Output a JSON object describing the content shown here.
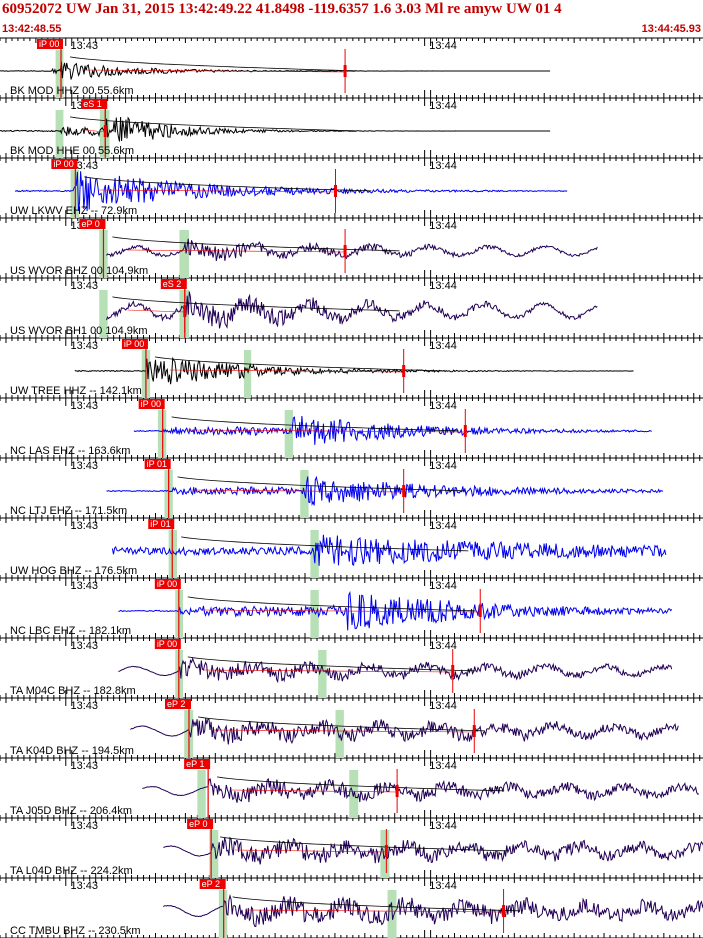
{
  "header": {
    "title": "60952072 UW Jan 31, 2015 13:42:49.22   41.8498 -119.6357  1.6 3.03 Ml re amyw UW 01   4",
    "start_time": "13:42:48.55",
    "end_time": "13:44:45.93"
  },
  "colors": {
    "header_text": "#c00000",
    "pick_flag": "#ee0000",
    "pick_line": "#ee0000",
    "window": "#b7e0b7",
    "moveout": "#000000",
    "trace_black": "#000000",
    "trace_blue": "#0000ee",
    "trace_navy": "#220055"
  },
  "chart_data": {
    "type": "line",
    "title": "60952072 UW Jan 31, 2015 13:42:49.22   41.8498 -119.6357  1.6 3.03 Ml re amyw UW 01   4",
    "x_range_seconds": [
      0,
      117.38
    ],
    "time_marks": [
      {
        "label": "13:43",
        "t": 11.45
      },
      {
        "label": "13:44",
        "t": 71.45
      }
    ],
    "traces": [
      {
        "label": "BK MOD HHZ 00 55.6km",
        "color": "black",
        "start": 0.0,
        "end": 92.0,
        "p": 10.2,
        "s": 17.6,
        "pick": {
          "label": "iP 00",
          "t": 10.2
        },
        "red_t": 57.7,
        "win": [
          9.3,
          10.6
        ],
        "amp": 0.35,
        "sig_start": 8.8,
        "onset": 10.2,
        "decay": 0.08
      },
      {
        "label": "BK MOD HHE 00 55.6km",
        "color": "black",
        "start": 0.0,
        "end": 92.0,
        "p": 10.2,
        "s": 17.6,
        "pick": {
          "label": "eS 1",
          "t": 17.6
        },
        "red_t": 17.6,
        "win": [
          9.3,
          10.6,
          16.7,
          18.3
        ],
        "amp": 0.7,
        "sig_start": 10.2,
        "onset": 17.6,
        "decay": 0.1
      },
      {
        "label": "UW LKWV EHZ -- 72.9km",
        "color": "blue",
        "start": 2.5,
        "end": 95.0,
        "p": 12.6,
        "s": 20.8,
        "pick": {
          "label": "iP 00",
          "t": 12.6
        },
        "red_t": 56.1,
        "win": [
          11.8,
          13.2
        ],
        "amp": 0.8,
        "sig_start": 12.0,
        "onset": 12.6,
        "decay": 0.05
      },
      {
        "label": "US WVOR BHZ 00 104.9km",
        "color": "navy",
        "start": 17.8,
        "end": 100.0,
        "p": 17.3,
        "s": 30.9,
        "pick": {
          "label": "eP 0",
          "t": 17.3
        },
        "red_t": 57.7,
        "win": [
          16.6,
          18.0,
          30.0,
          31.6
        ],
        "amp": 0.45,
        "sig_start": 17.3,
        "onset": 30.9,
        "decay": 0.03
      },
      {
        "label": "US WVOR BH1 00 104.9km",
        "color": "navy",
        "start": 17.8,
        "end": 100.0,
        "p": 17.3,
        "s": 30.9,
        "pick": {
          "label": "eS 2",
          "t": 30.9
        },
        "red_t": 30.9,
        "win": [
          16.6,
          18.0,
          30.0,
          31.6
        ],
        "amp": 0.7,
        "sig_start": 17.8,
        "onset": 30.9,
        "decay": 0.03
      },
      {
        "label": "UW TREE HHZ -- 142.1km",
        "color": "black",
        "start": 12.5,
        "end": 106.0,
        "p": 24.4,
        "s": 41.8,
        "pick": {
          "label": "iP 00",
          "t": 24.4
        },
        "red_t": 67.5,
        "win": [
          23.7,
          25.1,
          40.8,
          42.0
        ],
        "amp": 0.65,
        "sig_start": 24.4,
        "onset": 24.4,
        "decay": 0.06
      },
      {
        "label": "NC LAS EHZ -- 163.6km",
        "color": "blue",
        "start": 22.4,
        "end": 109.0,
        "p": 27.2,
        "s": 48.4,
        "pick": {
          "label": "iP 00",
          "t": 27.2
        },
        "red_t": 77.8,
        "win": [
          26.4,
          27.8,
          47.6,
          49.0
        ],
        "amp": 0.6,
        "sig_start": 27.2,
        "onset": 49.0,
        "decay": 0.05
      },
      {
        "label": "NC LTJ EHZ -- 171.5km",
        "color": "blue",
        "start": 17.8,
        "end": 111.0,
        "p": 28.2,
        "s": 50.9,
        "pick": {
          "label": "iP 01",
          "t": 28.2
        },
        "red_t": 67.5,
        "win": [
          27.5,
          28.9,
          50.2,
          51.6
        ],
        "amp": 0.55,
        "sig_start": 28.2,
        "onset": 50.9,
        "decay": 0.04
      },
      {
        "label": "UW HOG BHZ -- 176.5km",
        "color": "blue",
        "start": 18.8,
        "end": 111.5,
        "p": 28.8,
        "s": 52.6,
        "pick": {
          "label": "iP 01",
          "t": 28.8
        },
        "red_t": null,
        "win": [
          28.2,
          29.6,
          51.9,
          53.3
        ],
        "amp": 0.6,
        "sig_start": 18.8,
        "onset": 52.6,
        "decay": 0.02
      },
      {
        "label": "NC LBC EHZ -- 182.1km",
        "color": "blue",
        "start": 19.8,
        "end": 112.5,
        "p": 29.9,
        "s": 52.6,
        "pick": {
          "label": "iP 00",
          "t": 29.9
        },
        "red_t": 80.3,
        "win": [
          29.3,
          30.6,
          51.9,
          53.3
        ],
        "amp": 0.75,
        "sig_start": 29.9,
        "onset": 58.0,
        "decay": 0.04
      },
      {
        "label": "TA M04C BHZ -- 182.8km",
        "color": "navy",
        "start": 19.8,
        "end": 112.5,
        "p": 29.9,
        "s": 53.9,
        "pick": {
          "label": "iP 00",
          "t": 29.9
        },
        "red_t": 75.7,
        "win": [
          29.3,
          30.6,
          53.2,
          54.6
        ],
        "amp": 0.45,
        "sig_start": 29.9,
        "onset": 29.9,
        "decay": 0.015
      },
      {
        "label": "TA K04D BHZ -- 194.5km",
        "color": "navy",
        "start": 21.8,
        "end": 113.5,
        "p": 31.6,
        "s": 56.8,
        "pick": {
          "label": "eP 2",
          "t": 31.6
        },
        "red_t": 79.3,
        "win": [
          30.8,
          32.3,
          56.1,
          57.5
        ],
        "amp": 0.5,
        "sig_start": 31.6,
        "onset": 31.6,
        "decay": 0.01
      },
      {
        "label": "TA J05D BHZ -- 206.4km",
        "color": "navy",
        "start": 23.8,
        "end": 117.0,
        "p": 34.8,
        "s": 59.3,
        "pick": {
          "label": "eP 1",
          "t": 34.8
        },
        "red_t": 66.4,
        "win": [
          33.0,
          34.4,
          58.4,
          59.9
        ],
        "amp": 0.45,
        "sig_start": 34.8,
        "onset": 34.8,
        "decay": 0.01
      },
      {
        "label": "TA L04D BHZ -- 224.2km",
        "color": "navy",
        "start": 27.3,
        "end": 118.5,
        "p": 35.3,
        "s": 64.4,
        "pick": {
          "label": "eP 0",
          "t": 35.3
        },
        "red_t": 64.6,
        "win": [
          35.0,
          36.5,
          63.6,
          65.1
        ],
        "amp": 0.5,
        "sig_start": 35.3,
        "onset": 35.3,
        "decay": 0.008
      },
      {
        "label": "CC TMBU BHZ -- 230.5km",
        "color": "navy",
        "start": 27.3,
        "end": 119.5,
        "p": 37.4,
        "s": 65.5,
        "pick": {
          "label": "eP 2",
          "t": 37.4
        },
        "red_t": 84.2,
        "win": [
          36.6,
          38.0,
          64.8,
          66.3
        ],
        "amp": 0.55,
        "sig_start": 37.4,
        "onset": 37.4,
        "decay": 0.006
      }
    ]
  }
}
